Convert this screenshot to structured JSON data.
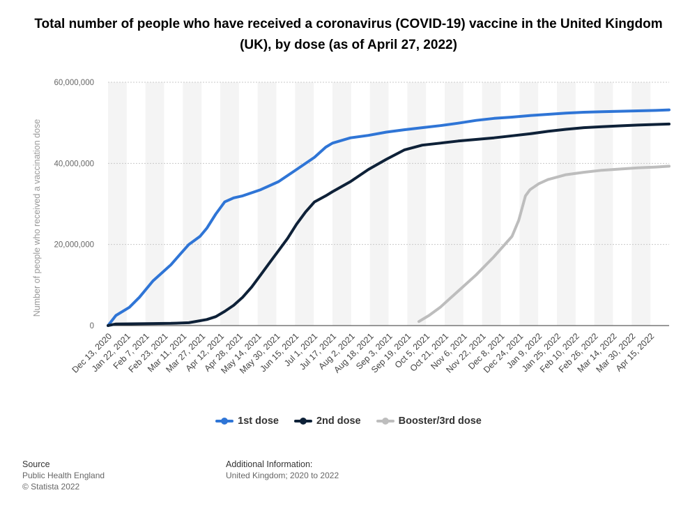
{
  "chart_data": {
    "type": "line",
    "title": "Total number of people who have received a coronavirus (COVID-19) vaccine in the United Kingdom (UK), by dose (as of April 27, 2022)",
    "xlabel": "",
    "ylabel": "Number of people who received a vaccination dose",
    "ylim": [
      0,
      60000000
    ],
    "yticks": [
      0,
      20000000,
      40000000,
      60000000
    ],
    "ytick_labels": [
      "0",
      "20,000,000",
      "40,000,000",
      "60,000,000"
    ],
    "x_range": [
      "2020-12-13",
      "2022-04-27"
    ],
    "xtick_labels": [
      "Dec 13, 2020",
      "Jan 22, 2021",
      "Feb 7, 2021",
      "Feb 23, 2021",
      "Mar 11, 2021",
      "Mar 27, 2021",
      "Apr 12, 2021",
      "Apr 28, 2021",
      "May 14, 2021",
      "May 30, 2021",
      "Jun 15, 2021",
      "Jul 1, 2021",
      "Jul 17, 2021",
      "Aug 2, 2021",
      "Aug 18, 2021",
      "Sep 3, 2021",
      "Sep 19, 2021",
      "Oct 5, 2021",
      "Oct 21, 2021",
      "Nov 6, 2021",
      "Nov 22, 2021",
      "Dec 8, 2021",
      "Dec 24, 2021",
      "Jan 9, 2022",
      "Jan 25, 2022",
      "Feb 10, 2022",
      "Feb 26, 2022",
      "Mar 14, 2022",
      "Mar 30, 2022",
      "Apr 15, 2022"
    ],
    "grid": "horizontal dotted",
    "legend": "bottom-center",
    "series": [
      {
        "name": "1st dose",
        "color": "#2f75d6",
        "points": [
          [
            "2020-12-13",
            0
          ],
          [
            "2020-12-20",
            2500000
          ],
          [
            "2021-01-01",
            4500000
          ],
          [
            "2021-01-10",
            7000000
          ],
          [
            "2021-01-22",
            11000000
          ],
          [
            "2021-02-07",
            15000000
          ],
          [
            "2021-02-15",
            17500000
          ],
          [
            "2021-02-23",
            20000000
          ],
          [
            "2021-03-05",
            22000000
          ],
          [
            "2021-03-11",
            24000000
          ],
          [
            "2021-03-19",
            27500000
          ],
          [
            "2021-03-27",
            30500000
          ],
          [
            "2021-04-04",
            31500000
          ],
          [
            "2021-04-12",
            32000000
          ],
          [
            "2021-04-28",
            33500000
          ],
          [
            "2021-05-14",
            35500000
          ],
          [
            "2021-05-30",
            38500000
          ],
          [
            "2021-06-15",
            41500000
          ],
          [
            "2021-06-25",
            44000000
          ],
          [
            "2021-07-01",
            45000000
          ],
          [
            "2021-07-17",
            46300000
          ],
          [
            "2021-08-02",
            46900000
          ],
          [
            "2021-08-18",
            47700000
          ],
          [
            "2021-09-03",
            48300000
          ],
          [
            "2021-09-19",
            48800000
          ],
          [
            "2021-10-05",
            49300000
          ],
          [
            "2021-10-21",
            49900000
          ],
          [
            "2021-11-06",
            50600000
          ],
          [
            "2021-11-22",
            51100000
          ],
          [
            "2021-12-08",
            51400000
          ],
          [
            "2021-12-24",
            51800000
          ],
          [
            "2022-01-09",
            52100000
          ],
          [
            "2022-01-25",
            52400000
          ],
          [
            "2022-02-10",
            52600000
          ],
          [
            "2022-02-26",
            52750000
          ],
          [
            "2022-03-14",
            52850000
          ],
          [
            "2022-03-30",
            52950000
          ],
          [
            "2022-04-15",
            53050000
          ],
          [
            "2022-04-27",
            53200000
          ]
        ]
      },
      {
        "name": "2nd dose",
        "color": "#0e2138",
        "points": [
          [
            "2020-12-13",
            0
          ],
          [
            "2020-12-20",
            400000
          ],
          [
            "2021-01-22",
            500000
          ],
          [
            "2021-02-07",
            550000
          ],
          [
            "2021-02-23",
            700000
          ],
          [
            "2021-03-11",
            1500000
          ],
          [
            "2021-03-19",
            2200000
          ],
          [
            "2021-03-27",
            3500000
          ],
          [
            "2021-04-04",
            5000000
          ],
          [
            "2021-04-12",
            7000000
          ],
          [
            "2021-04-20",
            9500000
          ],
          [
            "2021-04-28",
            12500000
          ],
          [
            "2021-05-06",
            15500000
          ],
          [
            "2021-05-14",
            18500000
          ],
          [
            "2021-05-22",
            21500000
          ],
          [
            "2021-05-30",
            25000000
          ],
          [
            "2021-06-07",
            28000000
          ],
          [
            "2021-06-15",
            30500000
          ],
          [
            "2021-06-25",
            32000000
          ],
          [
            "2021-07-01",
            33000000
          ],
          [
            "2021-07-17",
            35500000
          ],
          [
            "2021-08-02",
            38500000
          ],
          [
            "2021-08-18",
            41000000
          ],
          [
            "2021-09-03",
            43300000
          ],
          [
            "2021-09-19",
            44500000
          ],
          [
            "2021-10-05",
            45000000
          ],
          [
            "2021-10-21",
            45500000
          ],
          [
            "2021-11-06",
            45900000
          ],
          [
            "2021-11-22",
            46300000
          ],
          [
            "2021-12-08",
            46800000
          ],
          [
            "2021-12-24",
            47300000
          ],
          [
            "2022-01-09",
            47900000
          ],
          [
            "2022-01-25",
            48400000
          ],
          [
            "2022-02-10",
            48800000
          ],
          [
            "2022-02-26",
            49050000
          ],
          [
            "2022-03-14",
            49250000
          ],
          [
            "2022-03-30",
            49450000
          ],
          [
            "2022-04-15",
            49600000
          ],
          [
            "2022-04-27",
            49700000
          ]
        ]
      },
      {
        "name": "Booster/3rd dose",
        "color": "#bdbdbd",
        "points": [
          [
            "2021-09-16",
            1000000
          ],
          [
            "2021-09-25",
            2500000
          ],
          [
            "2021-10-05",
            4500000
          ],
          [
            "2021-10-13",
            6500000
          ],
          [
            "2021-10-21",
            8500000
          ],
          [
            "2021-11-06",
            12500000
          ],
          [
            "2021-11-22",
            17000000
          ],
          [
            "2021-12-08",
            22000000
          ],
          [
            "2021-12-14",
            26000000
          ],
          [
            "2021-12-20",
            32000000
          ],
          [
            "2021-12-24",
            33500000
          ],
          [
            "2022-01-01",
            35000000
          ],
          [
            "2022-01-09",
            36000000
          ],
          [
            "2022-01-25",
            37200000
          ],
          [
            "2022-02-10",
            37800000
          ],
          [
            "2022-02-26",
            38300000
          ],
          [
            "2022-03-14",
            38600000
          ],
          [
            "2022-03-30",
            38900000
          ],
          [
            "2022-04-15",
            39100000
          ],
          [
            "2022-04-27",
            39300000
          ]
        ]
      }
    ]
  },
  "footer": {
    "source_heading": "Source",
    "source_name": "Public Health England",
    "copyright": "© Statista 2022",
    "info_heading": "Additional Information:",
    "info_text": "United Kingdom; 2020 to 2022"
  }
}
